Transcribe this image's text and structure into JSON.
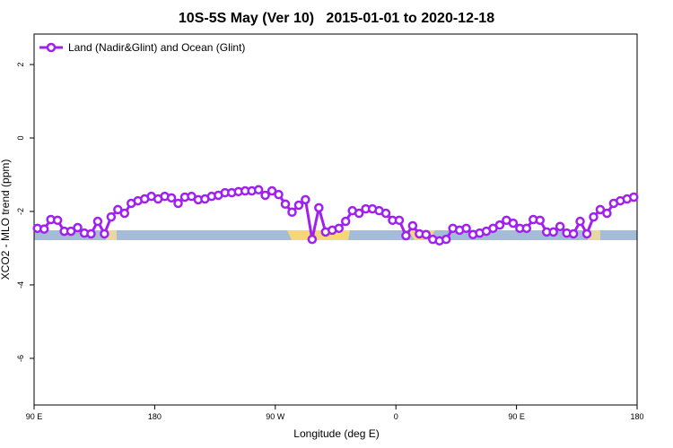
{
  "chart_data": {
    "type": "line",
    "title": "10S-5S May (Ver 10)   2015-01-01 to 2020-12-18",
    "x_label": "Longitude (deg E)",
    "y_label": "XCO2 - MLO trend (ppm)",
    "xlim": [
      90,
      540
    ],
    "xticks": [
      {
        "value": 90,
        "label": "90 E"
      },
      180,
      {
        "value": 270,
        "label": "90 W"
      },
      0,
      {
        "value": 450,
        "label": "90 E"
      },
      {
        "value": 540,
        "label": "180"
      }
    ],
    "ylim": [
      -7.27,
      2.83
    ],
    "yticks": [
      -6,
      -4,
      -2,
      0,
      2
    ],
    "legend": "top-left",
    "series": [
      {
        "name": "Land (Nadir&Glint) and Ocean (Glint)",
        "color": "#a020f0",
        "x": [
          92.5,
          97.5,
          102.5,
          107.5,
          112.5,
          117.5,
          122.5,
          127.5,
          132.5,
          137.5,
          142.5,
          147.5,
          152.5,
          157.5,
          162.5,
          167.5,
          172.5,
          177.5,
          182.5,
          187.5,
          192.5,
          197.5,
          202.5,
          207.5,
          212.5,
          217.5,
          222.5,
          227.5,
          232.5,
          237.5,
          242.5,
          247.5,
          252.5,
          257.5,
          262.5,
          267.5,
          272.5,
          277.5,
          282.5,
          287.5,
          292.5,
          297.5,
          302.5,
          307.5,
          312.5,
          317.5,
          322.5,
          327.5,
          332.5,
          337.5,
          342.5,
          347.5,
          352.5,
          357.5,
          362.5,
          367.5,
          372.5,
          377.5,
          382.5,
          387.5,
          392.5,
          397.5,
          402.5,
          407.5,
          412.5,
          417.5,
          422.5,
          427.5,
          432.5,
          437.5,
          442.5,
          447.5,
          452.5,
          457.5,
          462.5,
          467.5,
          472.5,
          477.5,
          482.5,
          487.5,
          492.5,
          497.5,
          502.5,
          507.5,
          512.5,
          517.5,
          522.5,
          527.5,
          532.5,
          537.5
        ],
        "values": [
          -2.46,
          -2.48,
          -2.22,
          -2.24,
          -2.54,
          -2.54,
          -2.44,
          -2.59,
          -2.61,
          -2.27,
          -2.61,
          -2.15,
          -1.95,
          -2.05,
          -1.78,
          -1.71,
          -1.66,
          -1.59,
          -1.66,
          -1.59,
          -1.63,
          -1.78,
          -1.61,
          -1.59,
          -1.68,
          -1.66,
          -1.59,
          -1.56,
          -1.49,
          -1.49,
          -1.46,
          -1.44,
          -1.44,
          -1.41,
          -1.56,
          -1.44,
          -1.54,
          -1.8,
          -2.02,
          -1.83,
          -1.68,
          -2.76,
          -1.9,
          -2.56,
          -2.51,
          -2.46,
          -2.27,
          -1.98,
          -2.05,
          -1.93,
          -1.93,
          -1.98,
          -2.05,
          -2.24,
          -2.24,
          -2.66,
          -2.39,
          -2.61,
          -2.63,
          -2.76,
          -2.8,
          -2.76,
          -2.46,
          -2.51,
          -2.46,
          -2.63,
          -2.59,
          -2.54,
          -2.46,
          -2.37,
          -2.24,
          -2.32,
          -2.46,
          -2.46,
          -2.22,
          -2.24,
          -2.56,
          -2.56,
          -2.41,
          -2.59,
          -2.61,
          -2.27,
          -2.61,
          -2.15,
          -1.95,
          -2.05,
          -1.78,
          -1.71,
          -1.66,
          -1.61
        ]
      }
    ]
  }
}
